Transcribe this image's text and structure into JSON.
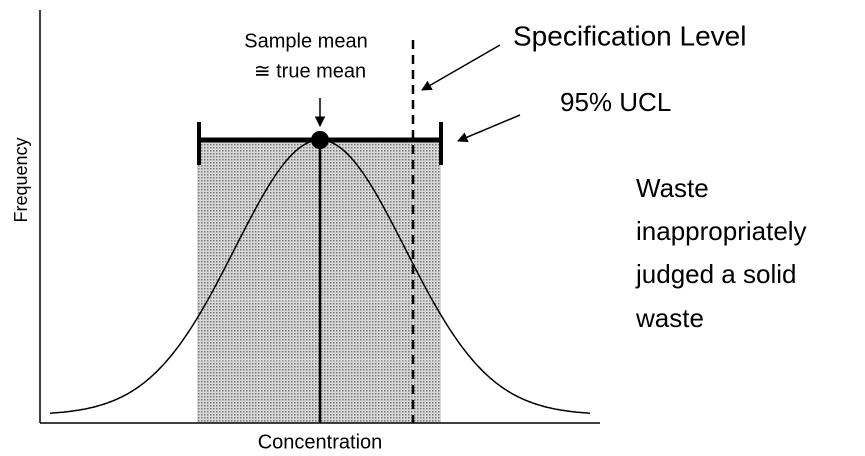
{
  "labels": {
    "sample_mean": "Sample mean",
    "true_mean": "≅ true mean",
    "specification_level": "Specification Level",
    "ucl": "95% UCL",
    "waste_note": [
      "Waste",
      "inappropriately",
      "judged a solid",
      "waste"
    ],
    "y_axis": "Frequency",
    "x_axis": "Concentration"
  }
}
